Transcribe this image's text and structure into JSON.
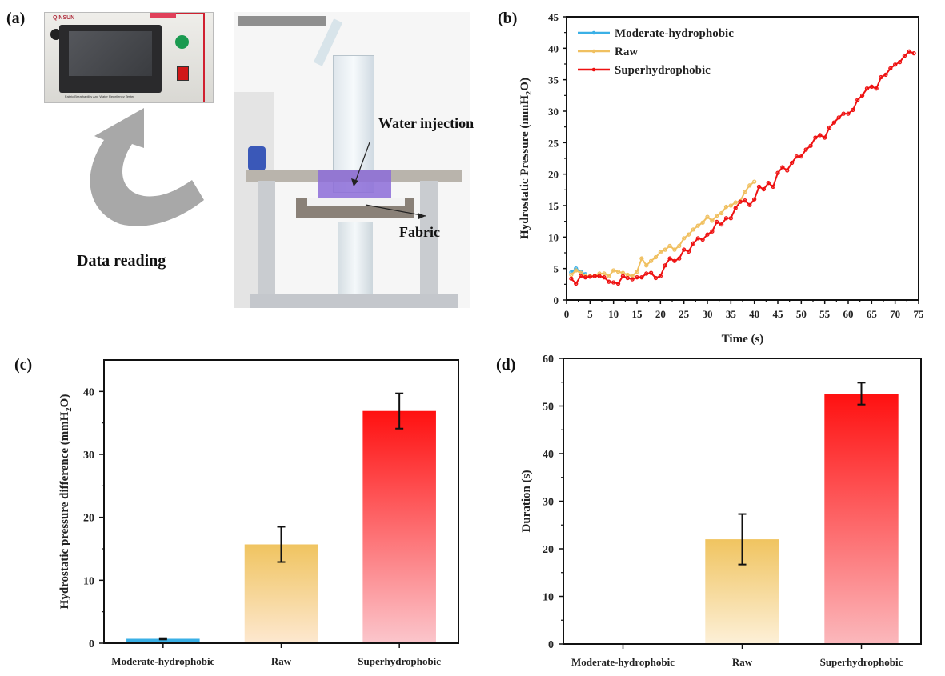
{
  "panels": {
    "a": {
      "label": "(a)",
      "device_brand": "QINSUN",
      "device_caption": "Fabric Breathability And Water Repellency Tester",
      "arrow_caption": "Data reading",
      "callouts": [
        "Water injection",
        "Fabric"
      ]
    },
    "b": {
      "label": "(b)"
    },
    "c": {
      "label": "(c)"
    },
    "d": {
      "label": "(d)"
    }
  },
  "watermark": "",
  "colors": {
    "moderate": "#3ab0e6",
    "raw": "#f0c060",
    "super": "#ee1111",
    "axis": "#111111"
  },
  "chart_data": [
    {
      "id": "b",
      "type": "line",
      "title": "",
      "xlabel": "Time (s)",
      "ylabel": "Hydrostatic Pressure (mmH2O)",
      "ylabel_parts": [
        "Hydrostatic Pressure (mmH",
        "2",
        "O)"
      ],
      "xlim": [
        0,
        75
      ],
      "ylim": [
        0,
        45
      ],
      "xticks": [
        0,
        5,
        10,
        15,
        20,
        25,
        30,
        35,
        40,
        45,
        50,
        55,
        60,
        65,
        70,
        75
      ],
      "yticks": [
        0,
        5,
        10,
        15,
        20,
        25,
        30,
        35,
        40,
        45
      ],
      "grid": false,
      "legend": "top-left",
      "series": [
        {
          "name": "Moderate-hydrophobic",
          "color": "#3ab0e6",
          "x": [
            1,
            2,
            3,
            4
          ],
          "y": [
            4.4,
            5.0,
            4.5,
            4.1
          ]
        },
        {
          "name": "Raw",
          "color": "#f0c060",
          "x": [
            1,
            2,
            3,
            4,
            5,
            6,
            7,
            8,
            9,
            10,
            11,
            12,
            13,
            14,
            15,
            16,
            17,
            18,
            19,
            20,
            21,
            22,
            23,
            24,
            25,
            26,
            27,
            28,
            29,
            30,
            31,
            32,
            33,
            34,
            35,
            36,
            37,
            38,
            39,
            40
          ],
          "y": [
            4.0,
            4.7,
            4.3,
            3.8,
            3.8,
            3.8,
            4.2,
            4.2,
            3.8,
            4.7,
            4.5,
            4.3,
            4.0,
            3.8,
            4.5,
            6.6,
            5.5,
            6.2,
            6.8,
            7.6,
            8.0,
            8.6,
            8.0,
            8.6,
            9.8,
            10.4,
            11.2,
            11.8,
            12.3,
            13.2,
            12.6,
            13.4,
            13.8,
            14.8,
            15.0,
            15.5,
            15.7,
            17.2,
            18.2,
            18.8
          ]
        },
        {
          "name": "Superhydrophobic",
          "color": "#ee1111",
          "x": [
            1,
            2,
            3,
            4,
            5,
            6,
            7,
            8,
            9,
            10,
            11,
            12,
            13,
            14,
            15,
            16,
            17,
            18,
            19,
            20,
            21,
            22,
            23,
            24,
            25,
            26,
            27,
            28,
            29,
            30,
            31,
            32,
            33,
            34,
            35,
            36,
            37,
            38,
            39,
            40,
            41,
            42,
            43,
            44,
            45,
            46,
            47,
            48,
            49,
            50,
            51,
            52,
            53,
            54,
            55,
            56,
            57,
            58,
            59,
            60,
            61,
            62,
            63,
            64,
            65,
            66,
            67,
            68,
            69,
            70,
            71,
            72,
            73,
            74
          ],
          "y": [
            3.4,
            2.6,
            3.8,
            3.6,
            3.7,
            3.8,
            3.8,
            3.6,
            2.9,
            2.8,
            2.6,
            3.8,
            3.5,
            3.3,
            3.6,
            3.6,
            4.2,
            4.3,
            3.5,
            3.8,
            5.5,
            6.6,
            6.2,
            6.6,
            8.0,
            7.7,
            9.0,
            9.8,
            9.6,
            10.4,
            10.9,
            12.4,
            12.0,
            13.0,
            13.0,
            14.6,
            15.6,
            15.8,
            15.1,
            16.0,
            18.0,
            17.6,
            18.6,
            18.0,
            20.2,
            21.1,
            20.6,
            21.8,
            22.8,
            22.8,
            23.9,
            24.5,
            25.8,
            26.2,
            25.8,
            27.4,
            28.2,
            29.0,
            29.6,
            29.6,
            30.2,
            31.8,
            32.5,
            33.6,
            33.9,
            33.6,
            35.4,
            35.8,
            36.8,
            37.4,
            37.8,
            38.8,
            39.5,
            39.2
          ]
        }
      ]
    },
    {
      "id": "c",
      "type": "bar",
      "title": "",
      "xlabel": "",
      "ylabel": "Hydrostatic pressure difference (mmH2O)",
      "ylabel_parts": [
        "Hydrostatic pressure difference (mmH",
        "2",
        "O)"
      ],
      "categories": [
        "Moderate-hydrophobic",
        "Raw",
        "Superhydrophobic"
      ],
      "values": [
        0.7,
        15.7,
        36.9
      ],
      "errors": [
        0.1,
        2.8,
        2.8
      ],
      "colors": [
        [
          "#3ab0e6",
          "#3ab0e6"
        ],
        [
          "#f0c460",
          "#fde8d0"
        ],
        [
          "#ff1010",
          "#fbc6cc"
        ]
      ],
      "ylim": [
        0,
        45
      ],
      "yticks": [
        0,
        10,
        20,
        30,
        40
      ],
      "grid": false
    },
    {
      "id": "d",
      "type": "bar",
      "title": "",
      "xlabel": "",
      "ylabel": "Duration (s)",
      "ylabel_parts": [
        "Duration (s)",
        "",
        ""
      ],
      "categories": [
        "Moderate-hydrophobic",
        "Raw",
        "Superhydrophobic"
      ],
      "values": [
        0,
        22.0,
        52.6
      ],
      "errors": [
        0,
        5.3,
        2.3
      ],
      "colors": [
        [
          "#3ab0e6",
          "#3ab0e6"
        ],
        [
          "#f0c460",
          "#fdf0d8"
        ],
        [
          "#ff1010",
          "#fbb8bc"
        ]
      ],
      "ylim": [
        0,
        60
      ],
      "yticks": [
        0,
        10,
        20,
        30,
        40,
        50,
        60
      ],
      "grid": false
    }
  ]
}
